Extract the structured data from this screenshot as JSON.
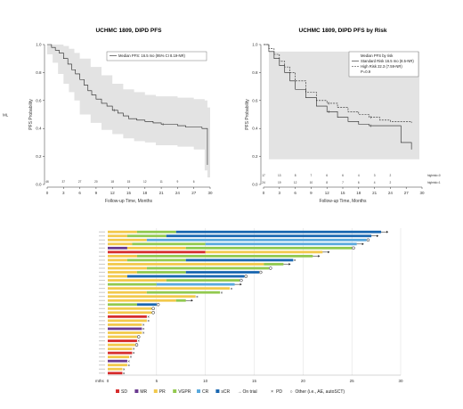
{
  "chart_data": [
    {
      "type": "line",
      "title": "UCHMC 1809, DIPD PFS",
      "xlabel": "Follow-up Time, Months",
      "ylabel": "PFS Probability",
      "side_label": "ML",
      "xlim": [
        0,
        30
      ],
      "ylim": [
        0,
        1
      ],
      "xticks": [
        "0",
        "3",
        "6",
        "9",
        "12",
        "15",
        "18",
        "21",
        "24",
        "27",
        "30"
      ],
      "yticks": [
        "0.0",
        "0.2",
        "0.4",
        "0.6",
        "0.8",
        "1.0"
      ],
      "legend": [
        "Median PFS: 16.5 mo (95% CI 8.19-NR)"
      ],
      "legend_position": "top-right",
      "risk_counts": [
        "46",
        "37",
        "27",
        "20",
        "18",
        "15",
        "12",
        "11",
        "9",
        "6",
        ""
      ],
      "series": [
        {
          "style": "solid",
          "x": [
            0,
            0.8,
            1.5,
            2.2,
            3,
            3.8,
            4.5,
            5.2,
            6,
            6.8,
            7.5,
            8.2,
            9,
            10,
            11,
            12,
            13,
            14,
            15,
            16.5,
            18,
            19.5,
            21,
            22.5,
            24,
            25.5,
            27,
            28.5,
            29.5,
            29.5
          ],
          "y": [
            1,
            0.98,
            0.96,
            0.94,
            0.9,
            0.86,
            0.82,
            0.79,
            0.75,
            0.71,
            0.67,
            0.64,
            0.61,
            0.58,
            0.56,
            0.53,
            0.51,
            0.49,
            0.47,
            0.46,
            0.45,
            0.44,
            0.43,
            0.43,
            0.42,
            0.41,
            0.41,
            0.4,
            0.28,
            0.14
          ]
        }
      ],
      "ci_band": {
        "x": [
          0,
          1,
          2,
          3,
          4,
          5,
          6,
          8,
          10,
          12,
          14,
          16,
          18,
          20,
          24,
          27,
          29,
          29.5,
          30
        ],
        "upper": [
          1,
          1,
          1,
          0.99,
          0.97,
          0.94,
          0.9,
          0.84,
          0.78,
          0.72,
          0.68,
          0.66,
          0.64,
          0.63,
          0.62,
          0.61,
          0.6,
          0.55,
          0.5
        ],
        "lower": [
          1,
          0.93,
          0.87,
          0.79,
          0.72,
          0.66,
          0.6,
          0.5,
          0.44,
          0.39,
          0.36,
          0.33,
          0.31,
          0.3,
          0.28,
          0.27,
          0.25,
          0.1,
          0.05
        ]
      }
    },
    {
      "type": "line",
      "title": "UCHMC 1809, DIPD PFS by Risk",
      "xlabel": "Follow-up Time, Months",
      "ylabel": "PFS Probability",
      "xlim": [
        0,
        30
      ],
      "ylim": [
        0,
        1
      ],
      "xticks": [
        "0",
        "3",
        "6",
        "9",
        "12",
        "15",
        "18",
        "21",
        "24",
        "27",
        "30"
      ],
      "yticks": [
        "0.0",
        "0.2",
        "0.4",
        "0.6",
        "0.8",
        "1.0"
      ],
      "legend": [
        "Median PFS by risk",
        "Standard Risk 16.5 mo (8.5-NR)",
        "High Risk 22.3 (7.59-NR)",
        "P=0.9"
      ],
      "legend_position": "top-right",
      "risk_rows": [
        {
          "counts": [
            "17",
            "13",
            "8",
            "7",
            "6",
            "6",
            "4",
            "3",
            "2"
          ],
          "label": "highrisk=0"
        },
        {
          "counts": [
            "24",
            "19",
            "12",
            "10",
            "8",
            "7",
            "6",
            "4",
            "2"
          ],
          "label": "highrisk=1"
        }
      ],
      "series": [
        {
          "name": "Standard Risk",
          "style": "solid",
          "x": [
            0,
            1,
            2,
            3,
            4,
            5,
            6,
            8,
            10,
            12,
            14,
            16,
            18,
            20,
            22,
            24,
            26,
            28
          ],
          "y": [
            1,
            0.95,
            0.9,
            0.85,
            0.8,
            0.74,
            0.68,
            0.62,
            0.56,
            0.52,
            0.48,
            0.45,
            0.43,
            0.42,
            0.42,
            0.42,
            0.3,
            0.25
          ]
        },
        {
          "name": "High Risk",
          "style": "dashed",
          "x": [
            0,
            1,
            2,
            3,
            4,
            5,
            6,
            8,
            10,
            12,
            14,
            16,
            18,
            20,
            22,
            24,
            26,
            28
          ],
          "y": [
            1,
            0.97,
            0.93,
            0.88,
            0.84,
            0.8,
            0.74,
            0.66,
            0.6,
            0.58,
            0.55,
            0.52,
            0.5,
            0.48,
            0.46,
            0.45,
            0.45,
            0.44
          ]
        }
      ]
    },
    {
      "type": "bar",
      "orientation": "horizontal",
      "xlabel": "mths",
      "xlim": [
        0,
        30
      ],
      "xticks": [
        "0",
        "5",
        "10",
        "15",
        "20",
        "25",
        "30"
      ],
      "legend_items": [
        {
          "label": "SD",
          "color": "#d62d2d"
        },
        {
          "label": "MR",
          "color": "#6a3a90"
        },
        {
          "label": "PR",
          "color": "#f2c94c"
        },
        {
          "label": "VGPR",
          "color": "#92c94f"
        },
        {
          "label": "CR",
          "color": "#5aa9dd"
        },
        {
          "label": "sCR",
          "color": "#1a67b0"
        },
        {
          "label": "On trial",
          "symbol": "→"
        },
        {
          "label": "PD",
          "symbol": "×"
        },
        {
          "label": "Other (i.e., AE, autoSCT)",
          "symbol": "○"
        }
      ],
      "rows": [
        {
          "segments": [
            [
              0,
              3,
              "#f2c94c"
            ],
            [
              3,
              7,
              "#92c94f"
            ],
            [
              7,
              28,
              "#1a67b0"
            ]
          ],
          "end": "ontrial"
        },
        {
          "segments": [
            [
              0,
              2,
              "#f2c94c"
            ],
            [
              2,
              6,
              "#92c94f"
            ],
            [
              6,
              27,
              "#1a67b0"
            ]
          ],
          "end": "ontrial"
        },
        {
          "segments": [
            [
              0,
              4,
              "#f2c94c"
            ],
            [
              4,
              26.5,
              "#5aa9dd"
            ]
          ],
          "end": "other"
        },
        {
          "segments": [
            [
              0,
              2.5,
              "#f2c94c"
            ],
            [
              2.5,
              10,
              "#92c94f"
            ],
            [
              10,
              25.5,
              "#5aa9dd"
            ]
          ],
          "end": "ontrial"
        },
        {
          "segments": [
            [
              0,
              2,
              "#6a3a90"
            ],
            [
              2,
              8,
              "#f2c94c"
            ],
            [
              8,
              25,
              "#92c94f"
            ]
          ],
          "end": "other"
        },
        {
          "segments": [
            [
              0,
              10,
              "#d62d2d"
            ],
            [
              10,
              22,
              "#f2c94c"
            ]
          ],
          "end": "ontrial"
        },
        {
          "segments": [
            [
              0,
              3,
              "#f2c94c"
            ],
            [
              3,
              21,
              "#92c94f"
            ]
          ],
          "end": "ontrial"
        },
        {
          "segments": [
            [
              0,
              2,
              "#f2c94c"
            ],
            [
              2,
              8,
              "#92c94f"
            ],
            [
              8,
              19,
              "#1a67b0"
            ]
          ],
          "end": "pd"
        },
        {
          "segments": [
            [
              0,
              16,
              "#f2c94c"
            ],
            [
              16,
              18,
              "#92c94f"
            ]
          ],
          "end": "ontrial"
        },
        {
          "segments": [
            [
              0,
              4,
              "#f2c94c"
            ],
            [
              4,
              16.5,
              "#92c94f"
            ]
          ],
          "end": "other"
        },
        {
          "segments": [
            [
              0,
              3,
              "#f2c94c"
            ],
            [
              3,
              8,
              "#92c94f"
            ],
            [
              8,
              15.5,
              "#1a67b0"
            ]
          ],
          "end": "other"
        },
        {
          "segments": [
            [
              0,
              2,
              "#f2c94c"
            ],
            [
              2,
              14,
              "#1a67b0"
            ]
          ],
          "end": "other"
        },
        {
          "segments": [
            [
              0,
              6,
              "#f2c94c"
            ],
            [
              6,
              13.5,
              "#92c94f"
            ]
          ],
          "end": "other"
        },
        {
          "segments": [
            [
              0,
              5,
              "#92c94f"
            ],
            [
              5,
              13,
              "#5aa9dd"
            ]
          ],
          "end": "ontrial"
        },
        {
          "segments": [
            [
              0,
              12.5,
              "#f2c94c"
            ]
          ],
          "end": "pd"
        },
        {
          "segments": [
            [
              0,
              4,
              "#f2c94c"
            ],
            [
              4,
              11.5,
              "#92c94f"
            ]
          ],
          "end": "pd"
        },
        {
          "segments": [
            [
              0,
              9,
              "#f2c94c"
            ]
          ],
          "end": "pd"
        },
        {
          "segments": [
            [
              0,
              7,
              "#f2c94c"
            ],
            [
              7,
              8,
              "#92c94f"
            ]
          ],
          "end": "ontrial"
        },
        {
          "segments": [
            [
              0,
              3,
              "#92c94f"
            ],
            [
              3,
              5,
              "#1a67b0"
            ]
          ],
          "end": "other"
        },
        {
          "segments": [
            [
              0,
              4.5,
              "#f2c94c"
            ]
          ],
          "end": "other"
        },
        {
          "segments": [
            [
              0,
              4.5,
              "#f2c94c"
            ]
          ],
          "end": "other"
        },
        {
          "segments": [
            [
              0,
              4,
              "#d62d2d"
            ]
          ],
          "end": "pd"
        },
        {
          "segments": [
            [
              0,
              4,
              "#f2c94c"
            ]
          ],
          "end": "pd"
        },
        {
          "segments": [
            [
              0,
              3.5,
              "#f2c94c"
            ]
          ],
          "end": "pd"
        },
        {
          "segments": [
            [
              0,
              3.5,
              "#6a3a90"
            ]
          ],
          "end": "pd"
        },
        {
          "segments": [
            [
              0,
              3.5,
              "#f2c94c"
            ]
          ],
          "end": "pd"
        },
        {
          "segments": [
            [
              0,
              3,
              "#f2c94c"
            ]
          ],
          "end": "other"
        },
        {
          "segments": [
            [
              0,
              3,
              "#d62d2d"
            ]
          ],
          "end": "pd"
        },
        {
          "segments": [
            [
              0,
              2.8,
              "#f2c94c"
            ]
          ],
          "end": "other"
        },
        {
          "segments": [
            [
              0,
              2.5,
              "#f2c94c"
            ]
          ],
          "end": "pd"
        },
        {
          "segments": [
            [
              0,
              2.5,
              "#d62d2d"
            ]
          ],
          "end": "pd"
        },
        {
          "segments": [
            [
              0,
              2.2,
              "#f2c94c"
            ]
          ],
          "end": "pd"
        },
        {
          "segments": [
            [
              0,
              2,
              "#6a3a90"
            ]
          ],
          "end": "pd"
        },
        {
          "segments": [
            [
              0,
              2,
              "#f2c94c"
            ]
          ],
          "end": "pd"
        },
        {
          "segments": [
            [
              0,
              1.5,
              "#f2c94c"
            ]
          ],
          "end": "pd"
        },
        {
          "segments": [
            [
              0,
              1.5,
              "#d62d2d"
            ]
          ],
          "end": "pd"
        }
      ]
    }
  ]
}
